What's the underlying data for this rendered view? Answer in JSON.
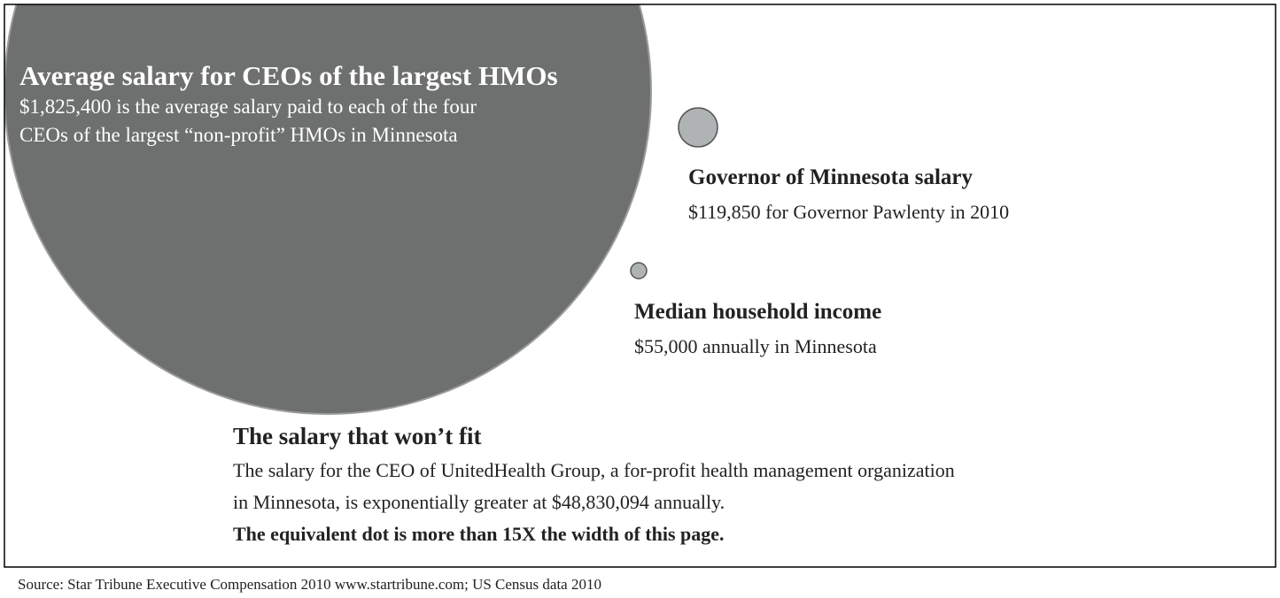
{
  "main": {
    "title": "Average salary for CEOs of the largest HMOs",
    "lines": [
      "$1,825,400 is the average salary paid to each of the four",
      "CEOs of the largest “non-profit” HMOs in Minnesota"
    ]
  },
  "governor": {
    "title": "Governor of Minnesota salary",
    "line": "$119,850 for Governor Pawlenty in 2010"
  },
  "median": {
    "title": "Median household income",
    "line": "$55,000 annually in Minnesota"
  },
  "wont_fit": {
    "title": "The salary that won’t fit",
    "lines": [
      "The salary for the CEO of UnitedHealth Group, a for-profit health management organization",
      "in Minnesota, is exponentially greater at $48,830,094 annually."
    ],
    "emphasis": "The equivalent dot is more than 15X the width of this page."
  },
  "source": "Source: Star Tribune Executive Compensation 2010 www.startribune.com; US Census data 2010"
}
